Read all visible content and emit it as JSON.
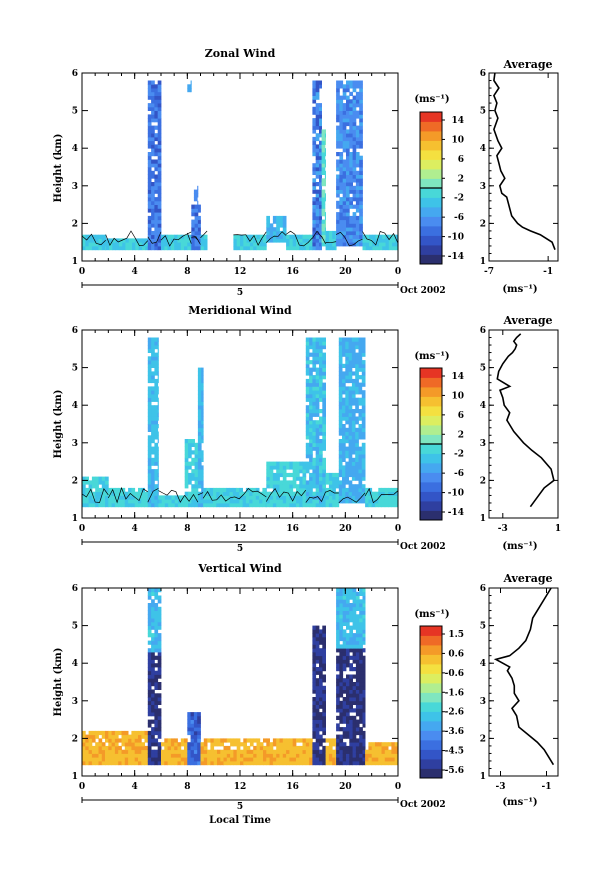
{
  "colors": {
    "scale": [
      "#2b2f6e",
      "#2f3fa0",
      "#3355c7",
      "#3b6fe0",
      "#4a8cf0",
      "#45a8f0",
      "#3ec3e8",
      "#48d8d8",
      "#7fe6c0",
      "#b0ee90",
      "#dcee60",
      "#f4e040",
      "#f6c030",
      "#f49a28",
      "#ef6a26",
      "#e63524"
    ]
  },
  "chart_data": [
    {
      "type": "heatmap",
      "title": "Zonal Wind",
      "xlabel": "",
      "ylabel": "Height (km)",
      "xlim": [
        0,
        24
      ],
      "ylim": [
        1,
        6
      ],
      "xticks": [
        "0",
        "4",
        "8",
        "12",
        "16",
        "20",
        "0"
      ],
      "yticks": [
        "1",
        "2",
        "3",
        "4",
        "5",
        "6"
      ],
      "day_label": "5",
      "date_label": "Oct 2002",
      "colorbar": {
        "unit": "(ms⁻¹)",
        "labels": [
          "14",
          "10",
          "6",
          "2",
          "-2",
          "-6",
          "-10",
          "-14"
        ],
        "min": -16,
        "max": 16
      },
      "ref_level": 0,
      "bg": [
        -3,
        -1
      ],
      "hmin": 1.3,
      "blocks": [
        {
          "x": [
            0,
            1.8
          ],
          "y": [
            1.3,
            1.7
          ],
          "v": [
            -3,
            -1
          ]
        },
        {
          "x": [
            1.8,
            5.0
          ],
          "y": [
            1.3,
            1.6
          ],
          "v": [
            -4,
            -1
          ]
        },
        {
          "x": [
            5.0,
            6.0
          ],
          "y": [
            1.3,
            5.8
          ],
          "v": [
            -11,
            -6
          ]
        },
        {
          "x": [
            6.0,
            8.3
          ],
          "y": [
            1.3,
            1.7
          ],
          "v": [
            -3,
            -1
          ]
        },
        {
          "x": [
            8.3,
            9.0
          ],
          "y": [
            1.3,
            2.5
          ],
          "v": [
            -12,
            -6
          ]
        },
        {
          "x": [
            8.5,
            8.8
          ],
          "y": [
            2.5,
            3.0
          ],
          "v": [
            -8,
            -6
          ]
        },
        {
          "x": [
            8.0,
            8.3
          ],
          "y": [
            5.5,
            5.8
          ],
          "v": [
            -6,
            -4
          ]
        },
        {
          "x": [
            9.0,
            9.5
          ],
          "y": [
            1.3,
            1.7
          ],
          "v": [
            -3,
            -1
          ]
        },
        {
          "x": [
            11.5,
            14.0
          ],
          "y": [
            1.3,
            1.7
          ],
          "v": [
            -3,
            -1
          ]
        },
        {
          "x": [
            14.0,
            15.5
          ],
          "y": [
            1.5,
            2.2
          ],
          "v": [
            -5,
            -2
          ]
        },
        {
          "x": [
            15.5,
            17.5
          ],
          "y": [
            1.3,
            1.7
          ],
          "v": [
            -3,
            -1
          ]
        },
        {
          "x": [
            17.5,
            18.2
          ],
          "y": [
            1.3,
            5.8
          ],
          "v": [
            -12,
            -4
          ]
        },
        {
          "x": [
            18.2,
            18.5
          ],
          "y": [
            1.4,
            4.5
          ],
          "v": [
            -2,
            2
          ]
        },
        {
          "x": [
            18.5,
            19.3
          ],
          "y": [
            1.3,
            1.8
          ],
          "v": [
            -4,
            -1
          ]
        },
        {
          "x": [
            19.3,
            21.3
          ],
          "y": [
            1.4,
            5.8
          ],
          "v": [
            -9,
            -5
          ]
        },
        {
          "x": [
            21.3,
            24.0
          ],
          "y": [
            1.3,
            1.7
          ],
          "v": [
            -3,
            -1
          ]
        }
      ]
    },
    {
      "type": "heatmap",
      "title": "Meridional Wind",
      "xlabel": "",
      "ylabel": "Height (km)",
      "xlim": [
        0,
        24
      ],
      "ylim": [
        1,
        6
      ],
      "xticks": [
        "0",
        "4",
        "8",
        "12",
        "16",
        "20",
        "0"
      ],
      "yticks": [
        "1",
        "2",
        "3",
        "4",
        "5",
        "6"
      ],
      "day_label": "5",
      "date_label": "Oct 2002",
      "colorbar": {
        "unit": "(ms⁻¹)",
        "labels": [
          "14",
          "10",
          "6",
          "2",
          "-2",
          "-6",
          "-10",
          "-14"
        ],
        "min": -16,
        "max": 16
      },
      "ref_level": 0,
      "bg": [
        -3,
        0
      ],
      "hmin": 1.3,
      "blocks": [
        {
          "x": [
            0,
            2.0
          ],
          "y": [
            1.3,
            2.1
          ],
          "v": [
            -3,
            0
          ]
        },
        {
          "x": [
            2.0,
            5.0
          ],
          "y": [
            1.3,
            1.8
          ],
          "v": [
            -3,
            0
          ]
        },
        {
          "x": [
            5.0,
            5.8
          ],
          "y": [
            1.3,
            5.8
          ],
          "v": [
            -5,
            -2
          ]
        },
        {
          "x": [
            5.8,
            7.8
          ],
          "y": [
            1.3,
            1.6
          ],
          "v": [
            -3,
            0
          ]
        },
        {
          "x": [
            7.8,
            8.8
          ],
          "y": [
            1.3,
            3.1
          ],
          "v": [
            -4,
            0
          ]
        },
        {
          "x": [
            8.8,
            9.2
          ],
          "y": [
            1.3,
            5.0
          ],
          "v": [
            -5,
            -2
          ]
        },
        {
          "x": [
            9.2,
            14.0
          ],
          "y": [
            1.3,
            1.8
          ],
          "v": [
            -3,
            0
          ]
        },
        {
          "x": [
            14.0,
            17.0
          ],
          "y": [
            1.3,
            2.5
          ],
          "v": [
            -3,
            0
          ]
        },
        {
          "x": [
            17.0,
            18.5
          ],
          "y": [
            1.3,
            5.8
          ],
          "v": [
            -5,
            -1
          ]
        },
        {
          "x": [
            18.5,
            19.5
          ],
          "y": [
            1.3,
            2.2
          ],
          "v": [
            -3,
            0
          ]
        },
        {
          "x": [
            19.5,
            21.5
          ],
          "y": [
            1.4,
            5.8
          ],
          "v": [
            -6,
            -3
          ]
        },
        {
          "x": [
            21.5,
            24.0
          ],
          "y": [
            1.3,
            1.8
          ],
          "v": [
            -3,
            0
          ]
        }
      ]
    },
    {
      "type": "heatmap",
      "title": "Vertical Wind",
      "xlabel": "Local Time",
      "ylabel": "Height (km)",
      "xlim": [
        0,
        24
      ],
      "ylim": [
        1,
        6
      ],
      "xticks": [
        "0",
        "4",
        "8",
        "12",
        "16",
        "20",
        "0"
      ],
      "yticks": [
        "1",
        "2",
        "3",
        "4",
        "5",
        "6"
      ],
      "day_label": "5",
      "date_label": "Oct 2002",
      "colorbar": {
        "unit": "(ms⁻¹)",
        "labels": [
          "1.5",
          "0.6",
          "-0.6",
          "-1.6",
          "-2.6",
          "-3.6",
          "-4.5",
          "-5.6"
        ],
        "min": -6.4,
        "max": 2.4
      },
      "ref_level": null,
      "bg": [
        0.2,
        1.0
      ],
      "hmin": 1.3,
      "blocks": [
        {
          "x": [
            0,
            5.0
          ],
          "y": [
            1.3,
            2.2
          ],
          "v": [
            0.2,
            1.0
          ]
        },
        {
          "x": [
            5.0,
            6.0
          ],
          "y": [
            1.3,
            4.3
          ],
          "v": [
            -6.2,
            -5.5
          ]
        },
        {
          "x": [
            5.0,
            6.0
          ],
          "y": [
            4.3,
            6.0
          ],
          "v": [
            -3.5,
            -2.5
          ]
        },
        {
          "x": [
            6.0,
            8.0
          ],
          "y": [
            1.3,
            2.0
          ],
          "v": [
            0.2,
            1.0
          ]
        },
        {
          "x": [
            8.0,
            9.0
          ],
          "y": [
            1.3,
            2.7
          ],
          "v": [
            -5.5,
            -4.0
          ]
        },
        {
          "x": [
            9.0,
            17.5
          ],
          "y": [
            1.3,
            2.0
          ],
          "v": [
            0.2,
            1.0
          ]
        },
        {
          "x": [
            17.5,
            18.5
          ],
          "y": [
            1.3,
            5.0
          ],
          "v": [
            -6.2,
            -5.5
          ]
        },
        {
          "x": [
            18.5,
            19.3
          ],
          "y": [
            1.3,
            2.0
          ],
          "v": [
            0.2,
            1.0
          ]
        },
        {
          "x": [
            19.3,
            21.5
          ],
          "y": [
            1.3,
            4.4
          ],
          "v": [
            -6.2,
            -5.6
          ]
        },
        {
          "x": [
            19.3,
            21.5
          ],
          "y": [
            4.4,
            6.0
          ],
          "v": [
            -3.5,
            -2.5
          ]
        },
        {
          "x": [
            21.5,
            24.0
          ],
          "y": [
            1.3,
            1.9
          ],
          "v": [
            0.2,
            1.0
          ]
        }
      ]
    },
    {
      "type": "line",
      "title": "Average",
      "xlabel": "(ms⁻¹)",
      "ylabel": "",
      "xlim": [
        -7,
        0
      ],
      "ylim": [
        1,
        6
      ],
      "xticks": [
        {
          "v": -7,
          "t": "-7"
        },
        {
          "v": -1,
          "t": "-1"
        }
      ],
      "yticks": [
        "1",
        "2",
        "3",
        "4",
        "5",
        "6"
      ],
      "x": [
        -0.3,
        -0.6,
        -1.2,
        -1.8,
        -2.8,
        -3.6,
        -4.1,
        -4.7,
        -5.0,
        -5.2,
        -5.7,
        -5.9,
        -5.4,
        -5.8,
        -6.0,
        -6.2,
        -5.7,
        -6.1,
        -6.5,
        -6.1,
        -6.4,
        -6.2,
        -6.5,
        -6.0,
        -6.5,
        -6.4
      ],
      "y": [
        1.3,
        1.5,
        1.6,
        1.7,
        1.8,
        1.9,
        2.0,
        2.2,
        2.5,
        2.7,
        2.8,
        3.0,
        3.2,
        3.4,
        3.6,
        3.8,
        4.0,
        4.2,
        4.5,
        4.8,
        5.0,
        5.2,
        5.4,
        5.6,
        5.8,
        6.0
      ]
    },
    {
      "type": "line",
      "title": "Average",
      "xlabel": "(ms⁻¹)",
      "ylabel": "",
      "xlim": [
        -4,
        1
      ],
      "ylim": [
        1,
        6
      ],
      "xticks": [
        {
          "v": -3,
          "t": "-3"
        },
        {
          "v": 1,
          "t": "1"
        }
      ],
      "yticks": [
        "1",
        "2",
        "3",
        "4",
        "5",
        "6"
      ],
      "x": [
        -1.0,
        -0.6,
        0.0,
        0.7,
        0.5,
        -0.2,
        -0.9,
        -1.5,
        -2.2,
        -2.7,
        -2.5,
        -2.9,
        -3.0,
        -3.2,
        -2.5,
        -3.4,
        -3.3,
        -3.0,
        -2.6,
        -2.3,
        -2.1,
        -2.0,
        -2.2,
        -2.0,
        -1.7
      ],
      "y": [
        1.3,
        1.5,
        1.8,
        2.0,
        2.3,
        2.6,
        2.8,
        3.0,
        3.3,
        3.6,
        3.8,
        4.0,
        4.2,
        4.4,
        4.5,
        4.7,
        4.9,
        5.1,
        5.3,
        5.4,
        5.5,
        5.6,
        5.7,
        5.8,
        5.9
      ]
    },
    {
      "type": "line",
      "title": "Average",
      "xlabel": "(ms⁻¹)",
      "ylabel": "",
      "xlim": [
        -3.5,
        -0.5
      ],
      "ylim": [
        1,
        6
      ],
      "xticks": [
        {
          "v": -3,
          "t": "-3"
        },
        {
          "v": -1,
          "t": "-1"
        }
      ],
      "yticks": [
        "1",
        "2",
        "3",
        "4",
        "5",
        "6"
      ],
      "x": [
        -0.7,
        -0.9,
        -1.1,
        -1.4,
        -1.8,
        -2.2,
        -2.3,
        -2.5,
        -2.2,
        -2.4,
        -2.4,
        -2.5,
        -2.7,
        -2.6,
        -2.9,
        -3.2,
        -2.6,
        -2.2,
        -1.9,
        -1.7,
        -1.6,
        -1.3,
        -1.0,
        -0.8
      ],
      "y": [
        1.3,
        1.5,
        1.7,
        1.9,
        2.1,
        2.3,
        2.6,
        2.8,
        3.0,
        3.2,
        3.4,
        3.6,
        3.8,
        3.9,
        4.0,
        4.1,
        4.2,
        4.4,
        4.6,
        4.9,
        5.2,
        5.5,
        5.8,
        6.0
      ]
    }
  ]
}
